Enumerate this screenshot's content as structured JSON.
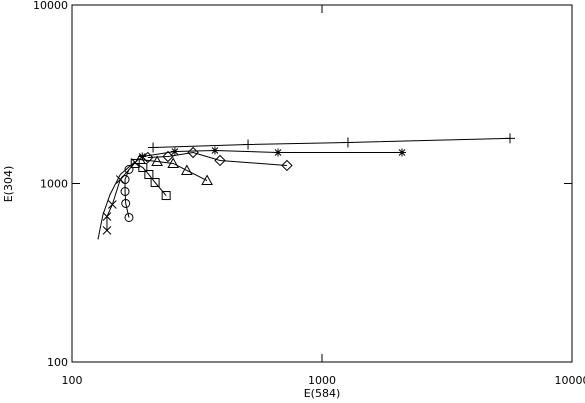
{
  "chart_data": {
    "type": "line",
    "x_label": "E(584)",
    "y_label": "E(304)",
    "xlim": [
      100,
      10000
    ],
    "ylim": [
      100,
      10000
    ],
    "xticks": [
      100,
      1000,
      10000
    ],
    "yticks": [
      100,
      1000,
      10000
    ],
    "xscale": "log",
    "yscale": "log",
    "grid": false,
    "series": [
      {
        "color": "#000000",
        "marker": "none",
        "x": [
          127,
          133,
          142,
          156,
          179
        ],
        "values": [
          486,
          670,
          868,
          1123,
          1328
        ]
      },
      {
        "color": "#000000",
        "marker": "x",
        "x": [
          138,
          138,
          145,
          156,
          179
        ],
        "values": [
          546,
          653,
          763,
          1053,
          1311
        ]
      },
      {
        "color": "#000000",
        "marker": "circle",
        "x": [
          169,
          164,
          163,
          163,
          169
        ],
        "values": [
          645,
          773,
          902,
          1053,
          1198
        ]
      },
      {
        "color": "#000000",
        "marker": "square",
        "x": [
          179,
          192,
          203,
          215,
          238
        ],
        "values": [
          1295,
          1229,
          1123,
          1013,
          856
        ]
      },
      {
        "color": "#000000",
        "marker": "triangle",
        "x": [
          187,
          219,
          254,
          288,
          347
        ],
        "values": [
          1363,
          1328,
          1295,
          1183,
          1039
        ]
      },
      {
        "color": "#000000",
        "marker": "diamond",
        "x": [
          201,
          242,
          305,
          391,
          724
        ],
        "values": [
          1398,
          1416,
          1492,
          1346,
          1262
        ]
      },
      {
        "color": "#000000",
        "marker": "asterisk",
        "x": [
          191,
          258,
          373,
          667,
          2089
        ],
        "values": [
          1416,
          1511,
          1531,
          1492,
          1492
        ]
      },
      {
        "color": "#000000",
        "marker": "plus",
        "x": [
          211,
          506,
          1270,
          5650
        ],
        "values": [
          1590,
          1654,
          1697,
          1789
        ]
      }
    ]
  }
}
